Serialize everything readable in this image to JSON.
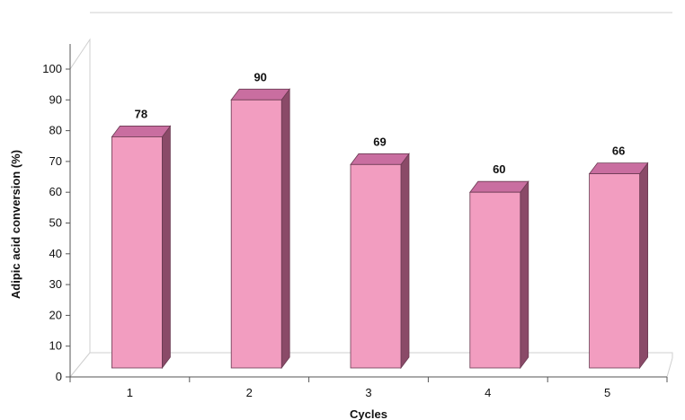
{
  "chart_data": {
    "type": "bar",
    "categories": [
      "1",
      "2",
      "3",
      "4",
      "5"
    ],
    "values": [
      78,
      90,
      69,
      60,
      66
    ],
    "data_labels": [
      "78",
      "90",
      "69",
      "60",
      "66"
    ],
    "title": "",
    "xlabel": "Cycles",
    "ylabel": "Adipic acid conversion (%)",
    "ylim": [
      0,
      100
    ],
    "yticks": [
      "0",
      "10",
      "20",
      "30",
      "40",
      "50",
      "60",
      "70",
      "80",
      "90",
      "100"
    ],
    "grid": false,
    "legend": "none",
    "style": "3d",
    "colors": {
      "bar_front": "#f29dc0",
      "bar_top": "#c96ea0",
      "bar_side": "#8a4a68",
      "bar_edge": "#6b3a52",
      "axis": "#555555",
      "wall": "#cfcfcf"
    }
  }
}
